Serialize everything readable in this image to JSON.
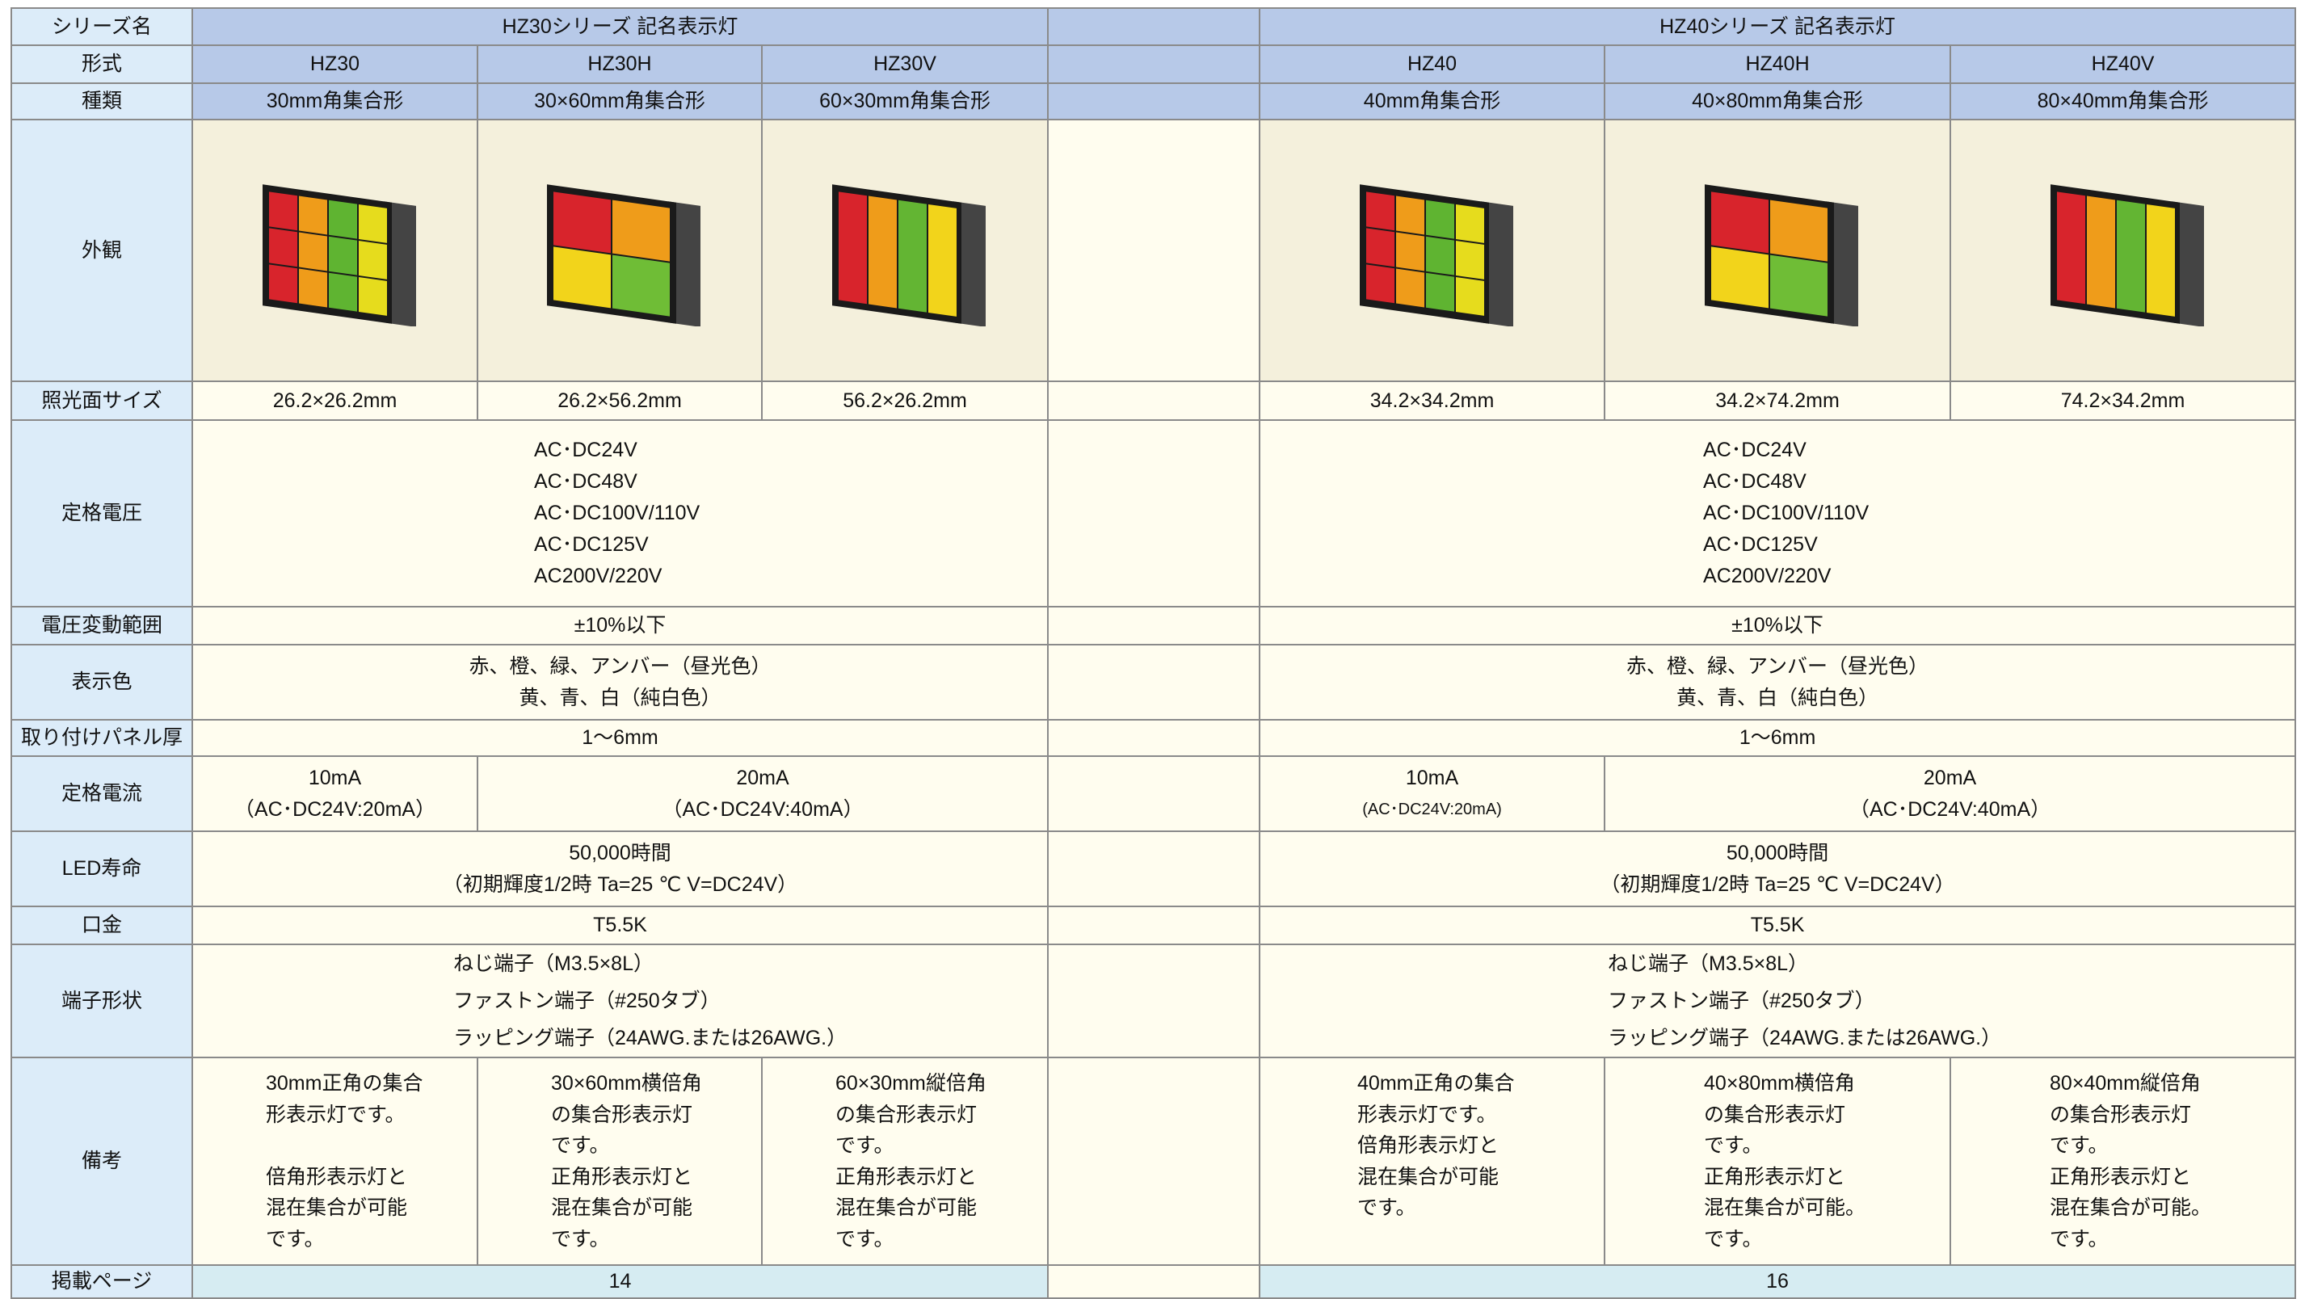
{
  "table": {
    "header_col": [
      "シリーズ名",
      "形式",
      "種類",
      "外観",
      "照光面サイズ",
      "定格電圧",
      "電圧変動範囲",
      "表示色",
      "取り付けパネル厚",
      "定格電流",
      "LED寿命",
      "口金",
      "端子形状",
      "備考",
      "掲載ページ"
    ],
    "series": [
      {
        "name": "HZ30シリーズ 記名表示灯",
        "models": [
          "HZ30",
          "HZ30H",
          "HZ30V"
        ],
        "types": [
          "30mm角集合形",
          "30×60mm角集合形",
          "60×30mm角集合形"
        ],
        "sizes": [
          "26.2×26.2mm",
          "26.2×56.2mm",
          "56.2×26.2mm"
        ],
        "voltage": [
          "AC･DC24V",
          "AC･DC48V",
          "AC･DC100V/110V",
          "AC･DC125V",
          "AC200V/220V"
        ],
        "variation": "±10%以下",
        "colors": [
          "赤、橙、緑、アンバー（昼光色）",
          "黄、青、白（純白色）"
        ],
        "panel": "1～6mm",
        "current": [
          {
            "value": "10mA",
            "note": "（AC･DC24V:20mA）"
          },
          {
            "value": "20mA",
            "note": "（AC･DC24V:40mA）"
          }
        ],
        "led_life": [
          "50,000時間",
          "（初期輝度1/2時 Ta=25 ℃ V=DC24V）"
        ],
        "base": "T5.5K",
        "terminal": [
          "ねじ端子（M3.5×8L）",
          "ファストン端子（#250タブ）",
          "ラッピング端子（24AWG.または26AWG.）"
        ],
        "notes": [
          [
            [
              "30mm正角の集合",
              "形表示灯です。"
            ],
            [
              "倍角形表示灯と",
              "混在集合が可能",
              "です。"
            ]
          ],
          [
            [
              "30×60mm横倍角",
              "の集合形表示灯",
              "です。",
              "正角形表示灯と",
              "混在集合が可能",
              "です。"
            ]
          ],
          [
            [
              "60×30mm縦倍角",
              "の集合形表示灯",
              "です。",
              "正角形表示灯と",
              "混在集合が可能",
              "です。"
            ]
          ]
        ],
        "page": "14"
      },
      {
        "name": "HZ40シリーズ 記名表示灯",
        "models": [
          "HZ40",
          "HZ40H",
          "HZ40V"
        ],
        "types": [
          "40mm角集合形",
          "40×80mm角集合形",
          "80×40mm角集合形"
        ],
        "sizes": [
          "34.2×34.2mm",
          "34.2×74.2mm",
          "74.2×34.2mm"
        ],
        "voltage": [
          "AC･DC24V",
          "AC･DC48V",
          "AC･DC100V/110V",
          "AC･DC125V",
          "AC200V/220V"
        ],
        "variation": "±10%以下",
        "colors": [
          "赤、橙、緑、アンバー（昼光色）",
          "黄、青、白（純白色）"
        ],
        "panel": "1～6mm",
        "current": [
          {
            "value": "10mA",
            "note": "(AC･DC24V:20mA)"
          },
          {
            "value": "20mA",
            "note": "（AC･DC24V:40mA）"
          }
        ],
        "led_life": [
          "50,000時間",
          "（初期輝度1/2時 Ta=25 ℃ V=DC24V）"
        ],
        "base": "T5.5K",
        "terminal": [
          "ねじ端子（M3.5×8L）",
          "ファストン端子（#250タブ）",
          "ラッピング端子（24AWG.または26AWG.）"
        ],
        "notes": [
          [
            [
              "40mm正角の集合",
              "形表示灯です。",
              "倍角形表示灯と",
              "混在集合が可能",
              "です。"
            ]
          ],
          [
            [
              "40×80mm横倍角",
              "の集合形表示灯",
              "です。",
              "正角形表示灯と",
              "混在集合が可能。",
              "です。"
            ]
          ],
          [
            [
              "80×40mm縦倍角",
              "の集合形表示灯",
              "です。",
              "正角形表示灯と",
              "混在集合が可能。",
              "です。"
            ]
          ]
        ],
        "page": "16"
      }
    ]
  }
}
